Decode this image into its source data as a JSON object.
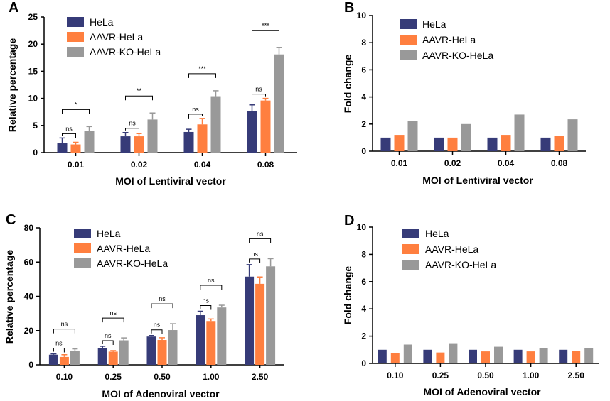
{
  "colors": {
    "hela": "#363B78",
    "aavr": "#FF7F3F",
    "ko": "#999999",
    "axis": "#000000"
  },
  "chart_data": [
    {
      "id": "A",
      "type": "bar",
      "panel_label": "A",
      "categories": [
        "0.01",
        "0.02",
        "0.04",
        "0.08"
      ],
      "series": [
        {
          "name": "HeLa",
          "color": "#363B78",
          "values": [
            1.7,
            3.0,
            3.8,
            7.6
          ],
          "errors": [
            1.0,
            0.7,
            0.5,
            1.2
          ]
        },
        {
          "name": "AAVR-HeLa",
          "color": "#FF7F3F",
          "values": [
            1.5,
            3.0,
            5.2,
            9.6
          ],
          "errors": [
            0.4,
            0.5,
            1.1,
            0.4
          ]
        },
        {
          "name": "AAVR-KO-HeLa",
          "color": "#999999",
          "values": [
            4.0,
            6.1,
            10.4,
            18.1
          ],
          "errors": [
            0.8,
            1.2,
            1.0,
            1.3
          ]
        }
      ],
      "xlabel": "MOI of Lentiviral vector",
      "ylabel": "Relative percentage",
      "ylim": [
        0,
        25
      ],
      "yticks": [
        0,
        5,
        10,
        15,
        20,
        25
      ],
      "annotations": [
        {
          "cat": 0,
          "label": "ns",
          "to": 1
        },
        {
          "cat": 0,
          "label": "*",
          "to": 2
        },
        {
          "cat": 1,
          "label": "ns",
          "to": 1
        },
        {
          "cat": 1,
          "label": "**",
          "to": 2
        },
        {
          "cat": 2,
          "label": "ns",
          "to": 1
        },
        {
          "cat": 2,
          "label": "***",
          "to": 2
        },
        {
          "cat": 3,
          "label": "ns",
          "to": 1
        },
        {
          "cat": 3,
          "label": "***",
          "to": 2
        }
      ]
    },
    {
      "id": "B",
      "type": "bar",
      "panel_label": "B",
      "categories": [
        "0.01",
        "0.02",
        "0.04",
        "0.08"
      ],
      "series": [
        {
          "name": "HeLa",
          "color": "#363B78",
          "values": [
            1.0,
            1.0,
            1.0,
            1.0
          ]
        },
        {
          "name": "AAVR-HeLa",
          "color": "#FF7F3F",
          "values": [
            1.2,
            1.0,
            1.2,
            1.15
          ]
        },
        {
          "name": "AAVR-KO-HeLa",
          "color": "#999999",
          "values": [
            2.25,
            2.0,
            2.7,
            2.35
          ]
        }
      ],
      "xlabel": "MOI of Lentiviral vector",
      "ylabel": "Fold change",
      "ylim": [
        0,
        10
      ],
      "yticks": [
        0,
        2,
        4,
        6,
        8,
        10
      ]
    },
    {
      "id": "C",
      "type": "bar",
      "panel_label": "C",
      "categories": [
        "0.10",
        "0.25",
        "0.50",
        "1.00",
        "2.50"
      ],
      "series": [
        {
          "name": "HeLa",
          "color": "#363B78",
          "values": [
            5.9,
            9.6,
            16.5,
            29.0,
            51.5
          ],
          "errors": [
            0.5,
            1.2,
            0.6,
            2.3,
            7.0
          ]
        },
        {
          "name": "AAVR-HeLa",
          "color": "#FF7F3F",
          "values": [
            4.6,
            7.7,
            14.5,
            25.6,
            47.3
          ],
          "errors": [
            1.3,
            0.6,
            1.3,
            1.2,
            4.0
          ]
        },
        {
          "name": "AAVR-KO-HeLa",
          "color": "#999999",
          "values": [
            8.3,
            14.3,
            20.3,
            33.5,
            57.5
          ],
          "errors": [
            1.0,
            1.4,
            3.7,
            1.3,
            4.5
          ]
        }
      ],
      "xlabel": "MOI of Adenoviral vector",
      "ylabel": "Relative percentage",
      "ylim": [
        0,
        80
      ],
      "yticks": [
        0,
        20,
        40,
        60,
        80
      ],
      "annotations": [
        {
          "cat": 0,
          "label": "ns",
          "to": 1
        },
        {
          "cat": 0,
          "label": "ns",
          "to": 2
        },
        {
          "cat": 1,
          "label": "ns",
          "to": 1
        },
        {
          "cat": 1,
          "label": "ns",
          "to": 2
        },
        {
          "cat": 2,
          "label": "ns",
          "to": 1
        },
        {
          "cat": 2,
          "label": "ns",
          "to": 2
        },
        {
          "cat": 3,
          "label": "ns",
          "to": 1
        },
        {
          "cat": 3,
          "label": "ns",
          "to": 2
        },
        {
          "cat": 4,
          "label": "ns",
          "to": 1
        },
        {
          "cat": 4,
          "label": "ns",
          "to": 2
        }
      ]
    },
    {
      "id": "D",
      "type": "bar",
      "panel_label": "D",
      "categories": [
        "0.10",
        "0.25",
        "0.50",
        "1.00",
        "2.50"
      ],
      "series": [
        {
          "name": "HeLa",
          "color": "#363B78",
          "values": [
            1.0,
            1.0,
            1.0,
            1.0,
            1.0
          ]
        },
        {
          "name": "AAVR-HeLa",
          "color": "#FF7F3F",
          "values": [
            0.78,
            0.8,
            0.88,
            0.88,
            0.92
          ]
        },
        {
          "name": "AAVR-KO-HeLa",
          "color": "#999999",
          "values": [
            1.38,
            1.48,
            1.22,
            1.14,
            1.12
          ]
        }
      ],
      "xlabel": "MOI of Adenoviral vector",
      "ylabel": "Fold change",
      "ylim": [
        0,
        10
      ],
      "yticks": [
        0,
        2,
        4,
        6,
        8,
        10
      ]
    }
  ]
}
